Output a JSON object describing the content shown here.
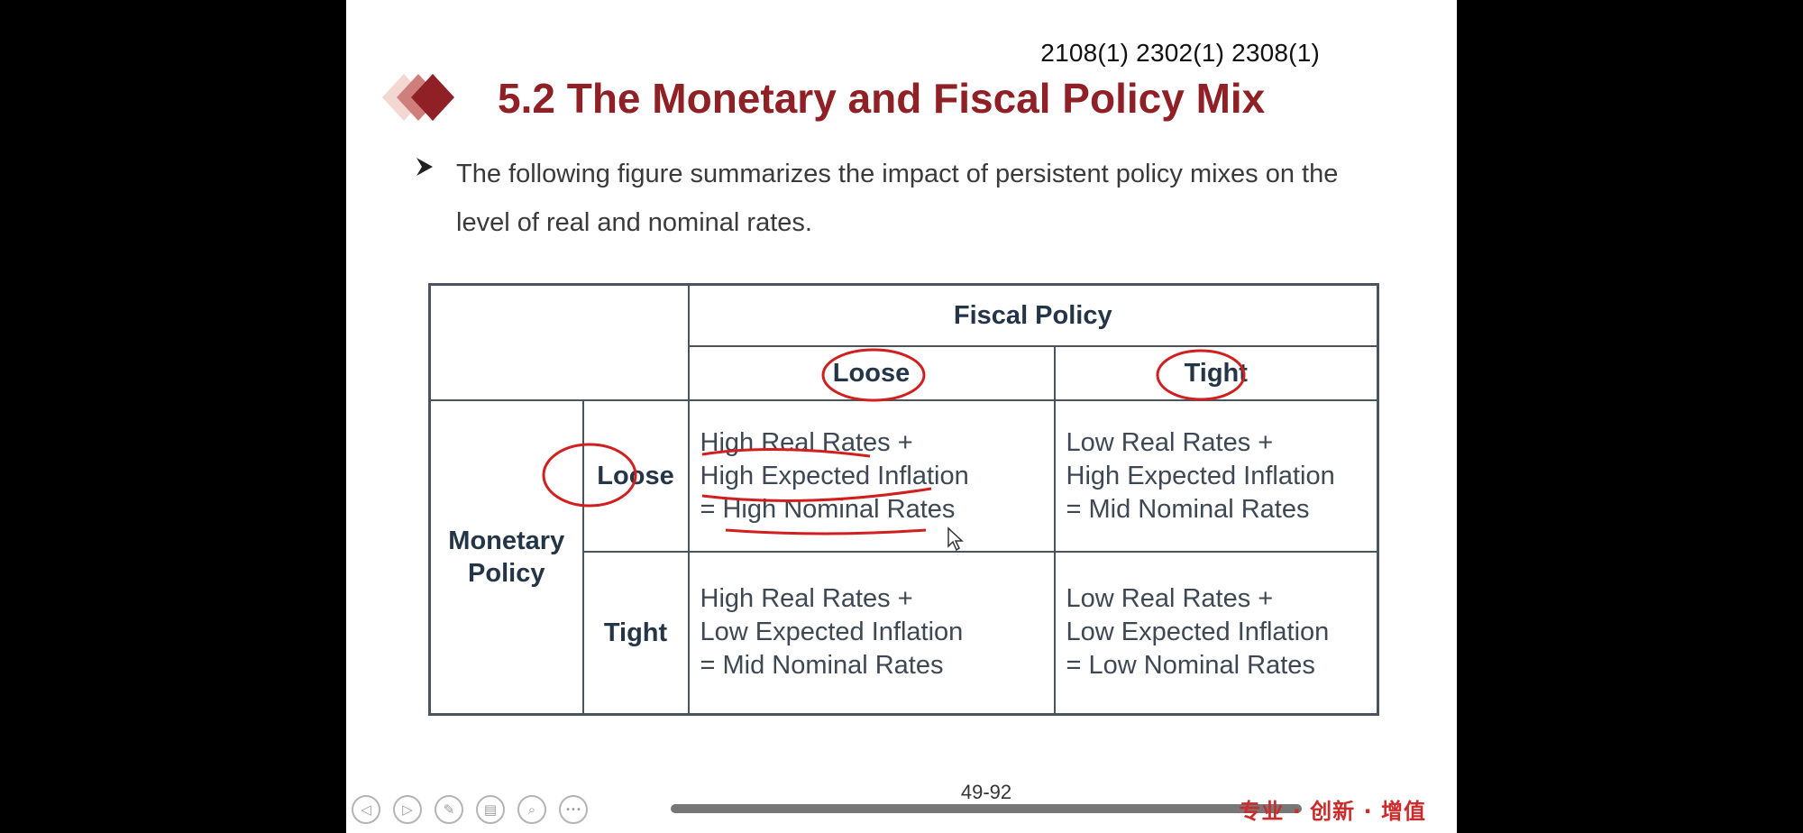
{
  "slide": {
    "exam_codes": "2108(1) 2302(1) 2308(1)",
    "title": "5.2 The Monetary and Fiscal Policy Mix",
    "bullet": "The following figure summarizes the impact of persistent policy mixes on the level of real and nominal rates."
  },
  "matrix": {
    "fiscal_header": "Fiscal Policy",
    "fiscal_loose": "Loose",
    "fiscal_tight": "Tight",
    "monetary_header": "Monetary Policy",
    "monetary_loose": "Loose",
    "monetary_tight": "Tight",
    "cells": {
      "loose_loose": [
        "High Real Rates +",
        "High Expected Inflation",
        "=  High Nominal Rates"
      ],
      "loose_tight": [
        "Low Real Rates +",
        "High Expected Inflation",
        "= Mid Nominal Rates"
      ],
      "tight_loose": [
        "High Real Rates +",
        "Low Expected Inflation",
        "= Mid Nominal Rates"
      ],
      "tight_tight": [
        "Low Real Rates +",
        "Low Expected Inflation",
        "= Low Nominal Rates"
      ]
    }
  },
  "footer": {
    "page_number": "49-92",
    "brand_text": "专业 · 创新 · 增值",
    "controls": [
      {
        "name": "previous-icon",
        "glyph": "◁"
      },
      {
        "name": "next-icon",
        "glyph": "▷"
      },
      {
        "name": "pen-icon",
        "glyph": "✎"
      },
      {
        "name": "slides-icon",
        "glyph": "▤"
      },
      {
        "name": "zoom-icon",
        "glyph": "⌕"
      },
      {
        "name": "more-icon",
        "glyph": "•••"
      }
    ]
  },
  "colors": {
    "title": "#8f2025",
    "annotation": "#d11f1f",
    "table_border": "#4a5460",
    "header_text": "#243548",
    "brand": "#cc2b2b"
  }
}
